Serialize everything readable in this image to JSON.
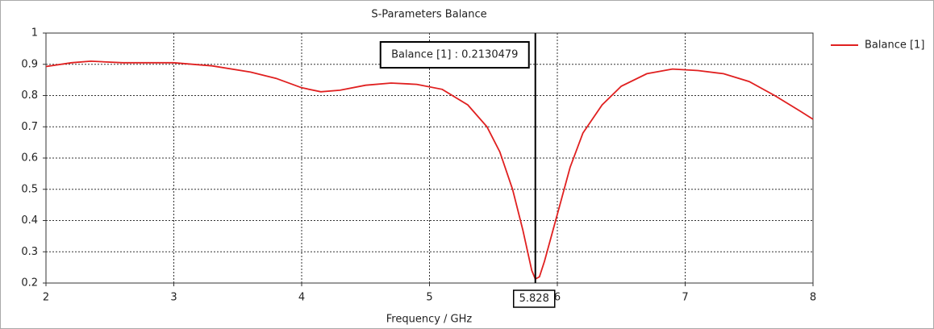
{
  "chart_data": {
    "type": "line",
    "title": "S-Parameters Balance",
    "x_label": "Frequency / GHz",
    "x": [
      2.0,
      2.2,
      2.35,
      2.6,
      3.0,
      3.3,
      3.6,
      3.8,
      4.0,
      4.15,
      4.3,
      4.5,
      4.7,
      4.9,
      5.1,
      5.3,
      5.45,
      5.55,
      5.65,
      5.73,
      5.8,
      5.828,
      5.86,
      5.9,
      6.0,
      6.1,
      6.2,
      6.35,
      6.5,
      6.7,
      6.9,
      7.1,
      7.3,
      7.5,
      7.7,
      7.9,
      8.0
    ],
    "series": [
      {
        "name": "Balance [1]",
        "color": "#e02020",
        "values": [
          0.893,
          0.905,
          0.91,
          0.905,
          0.905,
          0.895,
          0.875,
          0.855,
          0.825,
          0.812,
          0.817,
          0.833,
          0.84,
          0.836,
          0.82,
          0.77,
          0.7,
          0.62,
          0.5,
          0.37,
          0.24,
          0.213,
          0.22,
          0.27,
          0.42,
          0.57,
          0.68,
          0.77,
          0.83,
          0.87,
          0.885,
          0.88,
          0.87,
          0.845,
          0.8,
          0.75,
          0.724
        ]
      }
    ],
    "xlim": [
      2,
      8
    ],
    "xticks": [
      2,
      3,
      4,
      5,
      6,
      7,
      8
    ],
    "ylim": [
      0.2,
      1
    ],
    "yticks": [
      0.2,
      0.3,
      0.4,
      0.5,
      0.6,
      0.7,
      0.8,
      0.9,
      1
    ],
    "grid": true,
    "legend": "right",
    "marker": {
      "x": 5.828,
      "text": "Balance [1] : 0.2130479"
    }
  }
}
